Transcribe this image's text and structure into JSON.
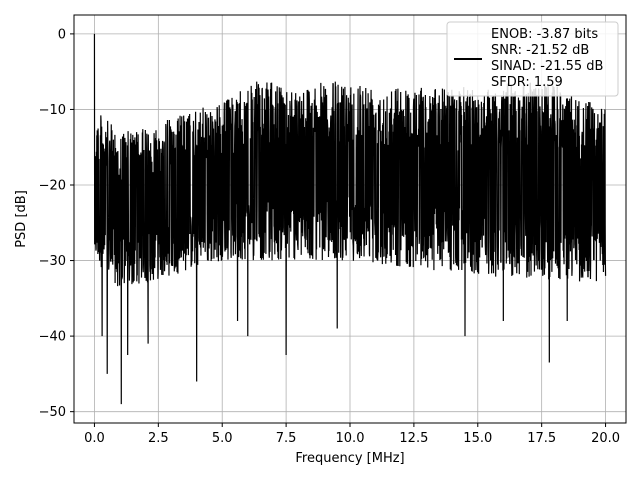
{
  "chart_data": {
    "type": "line",
    "xlabel": "Frequency [MHz]",
    "ylabel": "PSD [dB]",
    "xlim": [
      -0.8,
      20.8
    ],
    "ylim": [
      -51.5,
      2.5
    ],
    "x_ticks": [
      0.0,
      2.5,
      5.0,
      7.5,
      10.0,
      12.5,
      15.0,
      17.5,
      20.0
    ],
    "x_tick_labels": [
      "0.0",
      "2.5",
      "5.0",
      "7.5",
      "10.0",
      "12.5",
      "15.0",
      "17.5",
      "20.0"
    ],
    "y_ticks": [
      0,
      -10,
      -20,
      -30,
      -40,
      -50
    ],
    "y_tick_labels": [
      "0",
      "−10",
      "−20",
      "−30",
      "−40",
      "−50"
    ],
    "grid": true,
    "legend_position": "top-right",
    "series": [
      {
        "color": "#000000",
        "x_range": [
          0.0,
          20.0
        ],
        "baseline_peak": [
          0.0,
          0.0
        ],
        "upper_envelope": [
          [
            0.05,
            -10
          ],
          [
            1.0,
            -13
          ],
          [
            2.0,
            -12.5
          ],
          [
            3.0,
            -11
          ],
          [
            4.0,
            -10
          ],
          [
            5.0,
            -9
          ],
          [
            6.5,
            -6
          ],
          [
            7.5,
            -7
          ],
          [
            10.0,
            -6
          ],
          [
            12.5,
            -7
          ],
          [
            15.0,
            -7
          ],
          [
            17.5,
            -6
          ],
          [
            20.0,
            -10
          ]
        ],
        "lower_envelope": [
          [
            0.05,
            -30
          ],
          [
            1.0,
            -34
          ],
          [
            3.0,
            -32
          ],
          [
            5.0,
            -30
          ],
          [
            10.0,
            -30
          ],
          [
            15.0,
            -32
          ],
          [
            20.0,
            -33
          ]
        ],
        "deep_dips": [
          [
            0.3,
            -40
          ],
          [
            0.5,
            -45
          ],
          [
            1.05,
            -49
          ],
          [
            1.3,
            -42.5
          ],
          [
            2.1,
            -41
          ],
          [
            4.0,
            -46
          ],
          [
            5.6,
            -38
          ],
          [
            6.0,
            -40
          ],
          [
            7.5,
            -42.5
          ],
          [
            9.5,
            -39
          ],
          [
            14.5,
            -40
          ],
          [
            16.0,
            -38
          ],
          [
            17.8,
            -43.5
          ],
          [
            18.5,
            -38
          ]
        ]
      }
    ],
    "legend_lines": [
      "ENOB: -3.87 bits",
      "SNR: -21.52 dB",
      "SINAD: -21.55 dB",
      "SFDR: 1.59"
    ]
  }
}
